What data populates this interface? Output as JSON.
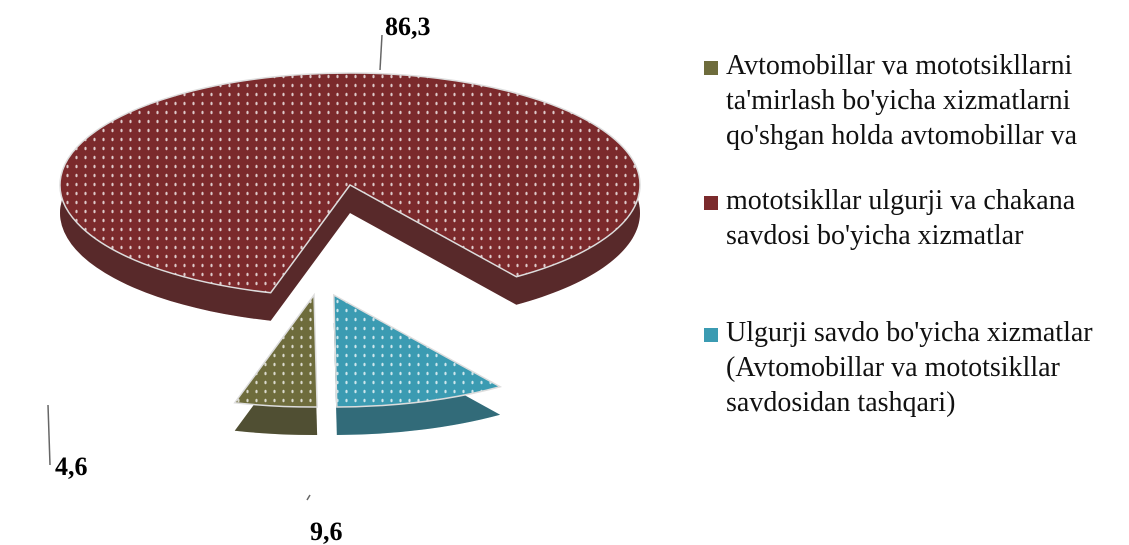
{
  "chart_data": {
    "type": "pie",
    "categories": [
      "Avtomobillar va mototsikllarni ta'mirlash bo'yicha xizmatlarni qo'shgan holda avtomobillar va",
      "mototsikllar ulgurji va chakana savdosi bo'yicha xizmatlar",
      "Ulgurji savdo bo'yicha xizmatlar (Avtomobillar va mototsikllar savdosidan tashqari)"
    ],
    "values": [
      4.6,
      86.3,
      9.6
    ],
    "value_labels": [
      "4,6",
      "86,3",
      "9,6"
    ],
    "colors": [
      "#6e6c3c",
      "#7b2a2c",
      "#3b9bb2"
    ]
  }
}
